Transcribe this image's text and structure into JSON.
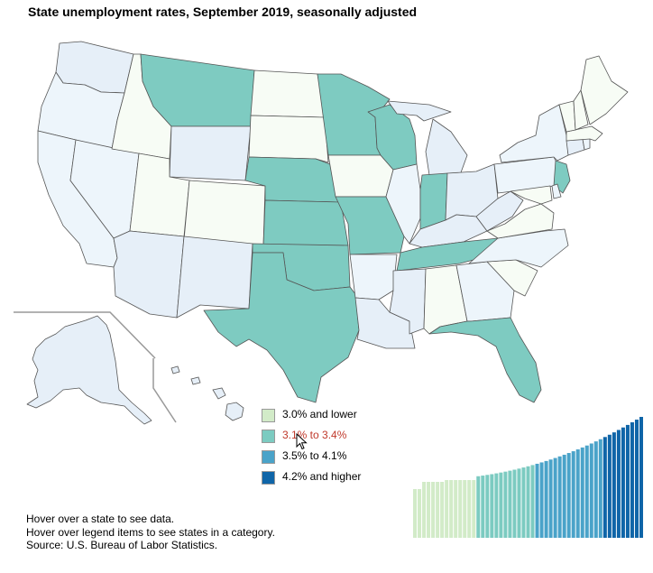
{
  "title": "State unemployment rates, September 2019, seasonally adjusted",
  "colors": {
    "low": "#d2ebc8",
    "mid": "#7ccbc1",
    "high": "#4aa3c9",
    "top": "#0f65a8",
    "state_low": "#f7fcf5",
    "state_mid": "#7ecbc1",
    "state_high": "#e6eff8",
    "state_top": "#edf5fb",
    "border": "#555555",
    "frame": "#999999"
  },
  "legend": [
    {
      "label": "3.0% and lower",
      "color": "#d2ebc8"
    },
    {
      "label": "3.1% to 3.4%",
      "color": "#7ccbc1"
    },
    {
      "label": "3.5% to 4.1%",
      "color": "#4aa3c9"
    },
    {
      "label": "4.2% and higher",
      "color": "#0f65a8"
    }
  ],
  "legend_hover_index": 1,
  "footer": {
    "line1": "Hover over a state to see data.",
    "line2": "Hover over legend items to see states in a category.",
    "line3": "Source: U.S. Bureau of Labor Statistics."
  },
  "chart_data": {
    "type": "bar",
    "sorted_rates_bins": [
      {
        "category": "3.0% and lower",
        "count": 14,
        "color": "#d2ebc8"
      },
      {
        "category": "3.1% to 3.4%",
        "count": 13,
        "color": "#7ccbc1"
      },
      {
        "category": "3.5% to 4.1%",
        "count": 15,
        "color": "#4aa3c9"
      },
      {
        "category": "4.2% and higher",
        "count": 9,
        "color": "#0f65a8"
      }
    ]
  }
}
